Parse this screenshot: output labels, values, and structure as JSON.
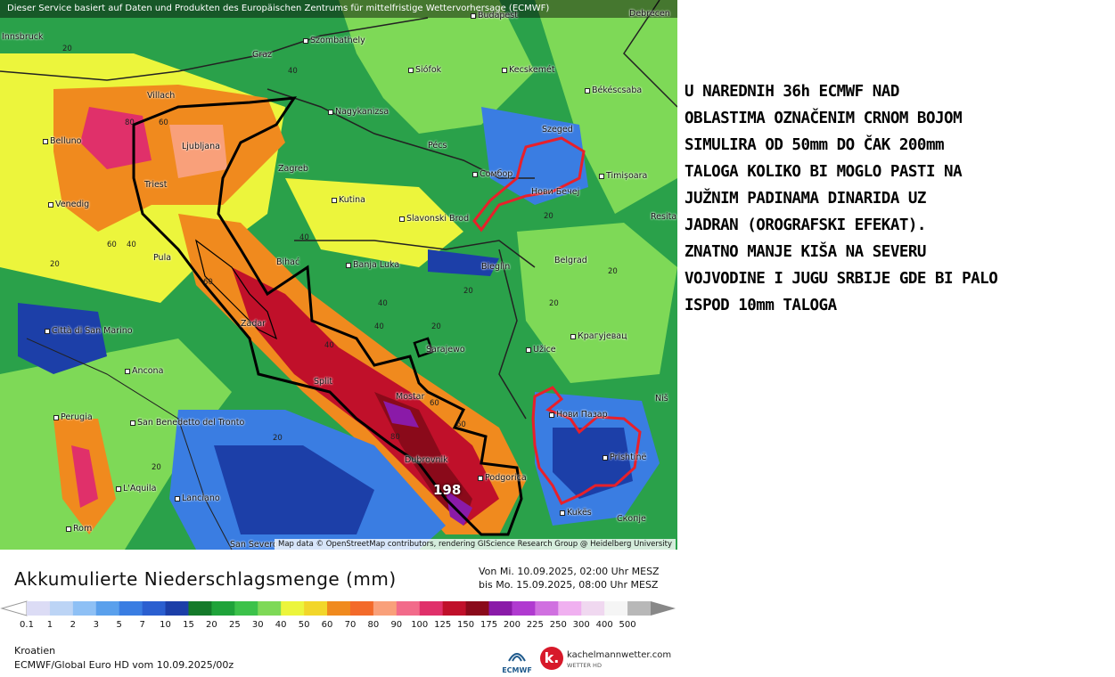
{
  "map": {
    "top_notice": "Dieser Service basiert auf Daten und Produkten des Europäischen Zentrums für mittelfristige Wettervorhersage (ECMWF)",
    "attribution": "Map data © OpenStreetMap contributors, rendering GIScience Research Group @ Heidelberg University",
    "cities": [
      "Budapest",
      "Debrecen",
      "Innsbruck",
      "Szombathely",
      "Graz",
      "Siófok",
      "Kecskemét",
      "Villach",
      "Nagykanizsa",
      "Békéscsaba",
      "Belluno",
      "Ljubljana",
      "Pécs",
      "Szeged",
      "Zagreb",
      "Сомбор",
      "Нови Бечеј",
      "Timișoara",
      "Triest",
      "Venedig",
      "Kutina",
      "Slavonski Brod",
      "Resita",
      "Pula",
      "Bihać",
      "Banja Luka",
      "Bieglin",
      "Belgrad",
      "Città di San Marino",
      "Zadar",
      "Sarajewo",
      "Крагујевац",
      "Ancona",
      "Split",
      "Užice",
      "Mostar",
      "Нови Пазар",
      "Niš",
      "Perugia",
      "San Benedetto del Tronto",
      "Dubrovnik",
      "Prishtinë",
      "L'Aquila",
      "Podgorica",
      "Lanciano",
      "Kukës",
      "Скопје",
      "Rom",
      "San Severo"
    ],
    "isoline_labels": [
      "40",
      "20",
      "80",
      "60",
      "60",
      "40",
      "20",
      "40",
      "60",
      "40",
      "20",
      "40",
      "20",
      "20",
      "20",
      "60",
      "80",
      "60",
      "20",
      "20",
      "40",
      "20"
    ],
    "max_value": "198",
    "colors": {
      "outline": "#000000",
      "marked_area": "#e8202a"
    }
  },
  "annotation": "U NAREDNIH 36h ECMWF NAD\nOBLASTIMA OZNAČENIM CRNOM BOJOM\nSIMULIRA OD 50mm DO ČAK 200mm\nTALOGA KOLIKO BI MOGLO PASTI NA\nJUŽNIM PADINAMA DINARIDA UZ\nJADRAN (OROGRAFSKI EFEKAT).\nZNATNO MANJE KIŠA NA SEVERU\nVOJVODINE I JUGU SRBIJE GDE BI PALO\nISPOD 10mm TALOGA",
  "legend": {
    "title": "Akkumulierte Niederschlagsmenge (mm)",
    "period_from": "Von Mi. 10.09.2025, 02:00 Uhr MESZ",
    "period_to": "bis Mo. 15.09.2025, 08:00 Uhr MESZ",
    "ticks": [
      "0.1",
      "1",
      "2",
      "3",
      "5",
      "7",
      "10",
      "15",
      "20",
      "25",
      "30",
      "40",
      "50",
      "60",
      "70",
      "80",
      "90",
      "100",
      "125",
      "150",
      "175",
      "200",
      "225",
      "250",
      "300",
      "400",
      "500"
    ],
    "colors": [
      "#dcdcf5",
      "#bcd4f5",
      "#8ec0f5",
      "#5aa0ec",
      "#3a7de2",
      "#2b5fd0",
      "#1c3fa8",
      "#147a2a",
      "#1fa33a",
      "#3cc24a",
      "#7ed957",
      "#ecf53c",
      "#f2d62a",
      "#f08a1e",
      "#f36a2a",
      "#f9a07a",
      "#f26b8a",
      "#e0306a",
      "#c0102a",
      "#8a0a1a",
      "#8a1aa8",
      "#b03ad0",
      "#d070e0",
      "#f0b0f0",
      "#f0d8f0",
      "#f5f5f5",
      "#b8b8b8"
    ]
  },
  "footer": {
    "region": "Kroatien",
    "model": "ECMWF/Global Euro HD vom  10.09.2025/00z",
    "ecmwf_logo": "ECMWF",
    "km_logo_letter": "k.",
    "km_brand": "kachelmannwetter.com",
    "km_sub": "WETTER HD"
  }
}
